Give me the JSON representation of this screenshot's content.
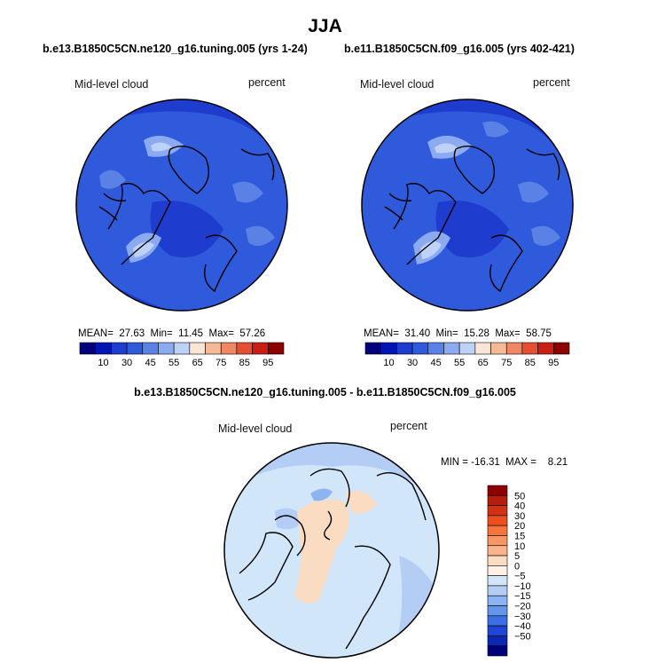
{
  "title": "JJA",
  "panels": [
    {
      "case": "b.e13.B1850C5CN.ne120_g16.tuning.005 (yrs 1-24)",
      "variable": "Mid-level cloud",
      "units": "percent",
      "stats": {
        "mean_label": "MEAN=",
        "mean": "27.63",
        "min_label": "Min=",
        "min": "11.45",
        "max_label": "Max=",
        "max": "57.26"
      }
    },
    {
      "case": "b.e11.B1850C5CN.f09_g16.005 (yrs 402-421)",
      "variable": "Mid-level cloud",
      "units": "percent",
      "stats": {
        "mean_label": "MEAN=",
        "mean": "31.40",
        "min_label": "Min=",
        "min": "15.28",
        "max_label": "Max=",
        "max": "58.75"
      }
    }
  ],
  "difference": {
    "title": "b.e13.B1850C5CN.ne120_g16.tuning.005 - b.e11.B1850C5CN.f09_g16.005",
    "variable": "Mid-level cloud",
    "units": "percent",
    "stats_text": "MIN = -16.31  MAX =    8.21"
  },
  "chart_data": [
    {
      "type": "heatmap",
      "projection": "north polar stereographic",
      "title": "b.e13.B1850C5CN.ne120_g16.tuning.005 (yrs 1-24)",
      "colorbar_ticks": [
        10,
        30,
        45,
        55,
        65,
        75,
        85,
        95
      ],
      "colors": [
        "#00007a",
        "#0014b4",
        "#1e3ccd",
        "#2f5adc",
        "#5a82e6",
        "#8caaf0",
        "#bed2f8",
        "#fae6d7",
        "#f5b996",
        "#f08764",
        "#e65032",
        "#c81e14",
        "#8c0000"
      ],
      "stats": {
        "mean": 27.63,
        "min": 11.45,
        "max": 57.26
      }
    },
    {
      "type": "heatmap",
      "projection": "north polar stereographic",
      "title": "b.e11.B1850C5CN.f09_g16.005 (yrs 402-421)",
      "colorbar_ticks": [
        10,
        30,
        45,
        55,
        65,
        75,
        85,
        95
      ],
      "colors": [
        "#00007a",
        "#0014b4",
        "#1e3ccd",
        "#2f5adc",
        "#5a82e6",
        "#8caaf0",
        "#bed2f8",
        "#fae6d7",
        "#f5b996",
        "#f08764",
        "#e65032",
        "#c81e14",
        "#8c0000"
      ],
      "stats": {
        "mean": 31.4,
        "min": 15.28,
        "max": 58.75
      }
    },
    {
      "type": "heatmap",
      "projection": "north polar stereographic",
      "title": "b.e13.B1850C5CN.ne120_g16.tuning.005 - b.e11.B1850C5CN.f09_g16.005",
      "colorbar_labels": [
        "50",
        "40",
        "30",
        "20",
        "15",
        "10",
        "5",
        "0",
        "−5",
        "−10",
        "−15",
        "−20",
        "−30",
        "−40",
        "−50"
      ],
      "colors": [
        "#8c0000",
        "#b41e0a",
        "#d23214",
        "#eb501e",
        "#f5733c",
        "#fa9664",
        "#fab48c",
        "#fadcc3",
        "#fff0e6",
        "#d2e6fa",
        "#b4cdf5",
        "#8cb4f0",
        "#6496eb",
        "#3c6ee6",
        "#1e46d2",
        "#0a28b4",
        "#000078"
      ],
      "stats": {
        "min": -16.31,
        "max": 8.21
      }
    }
  ]
}
